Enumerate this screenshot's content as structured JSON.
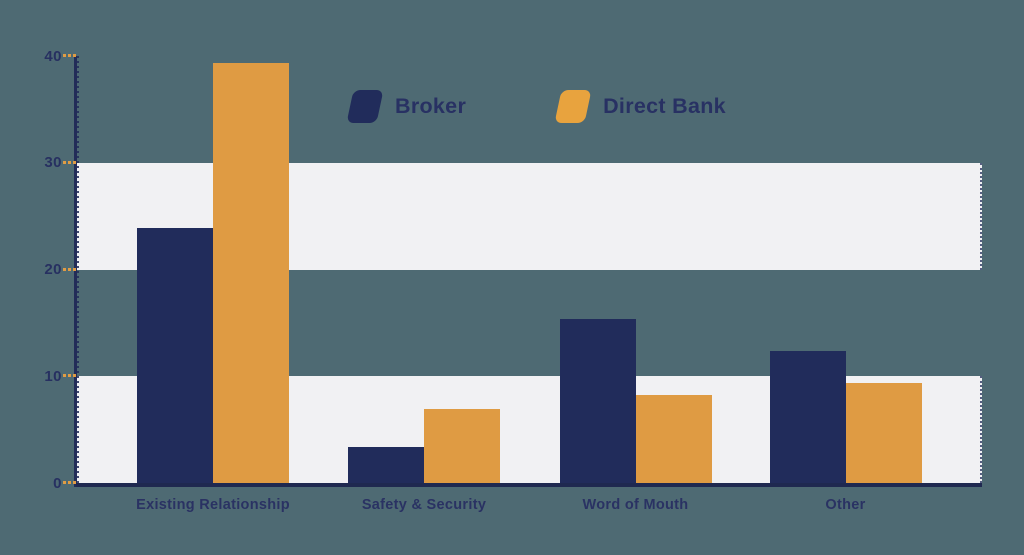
{
  "background_color": "#4e6a73",
  "band_color": "#f1f1f3",
  "axis_color": "#222c58",
  "text_color": "#283163",
  "legend": {
    "items": [
      {
        "label": "Broker",
        "color": "#212c5b"
      },
      {
        "label": "Direct Bank",
        "color": "#e8a33e"
      }
    ]
  },
  "chart_data": {
    "type": "bar",
    "title": "",
    "xlabel": "",
    "ylabel": "",
    "categories": [
      "Existing Relationship",
      "Safety & Security",
      "Word of Mouth",
      "Other"
    ],
    "series": [
      {
        "name": "Broker",
        "color": "#212c5b",
        "values": [
          23.9,
          3.4,
          15.4,
          12.4
        ]
      },
      {
        "name": "Direct Bank",
        "color": "#df9b43",
        "values": [
          39.3,
          6.9,
          8.2,
          9.4
        ]
      }
    ],
    "ylim": [
      0,
      40
    ],
    "yticks": [
      0,
      10,
      20,
      30,
      40
    ],
    "ytick_dash_color": "#e09c44",
    "bands": [
      [
        0,
        10
      ],
      [
        20,
        30
      ]
    ],
    "grid": false,
    "legend_position": "top-center"
  }
}
